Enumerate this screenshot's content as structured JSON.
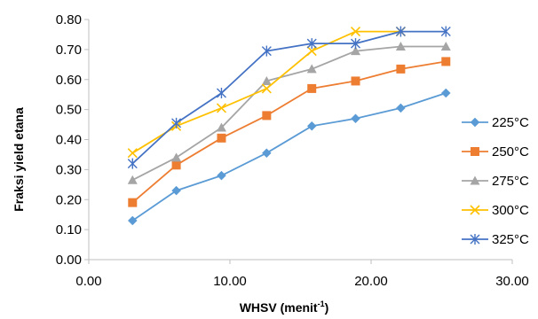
{
  "chart_data": {
    "type": "line",
    "title": "",
    "xlabel": "WHSV (menit",
    "xlabel_sup": "-1",
    "xlabel_tail": ")",
    "ylabel": "Fraksi  yield etana",
    "xlim": [
      0,
      30
    ],
    "ylim": [
      0,
      0.8
    ],
    "x_ticks": [
      "0.00",
      "10.00",
      "20.00",
      "30.00"
    ],
    "y_ticks": [
      "0.00",
      "0.10",
      "0.20",
      "0.30",
      "0.40",
      "0.50",
      "0.60",
      "0.70",
      "0.80"
    ],
    "grid": false,
    "legend_position": "right",
    "x": [
      3.1,
      6.2,
      9.4,
      12.6,
      15.8,
      18.9,
      22.1,
      25.3
    ],
    "series": [
      {
        "name": "225°C",
        "color": "#5b9bd5",
        "marker": "diamond",
        "values": [
          0.13,
          0.23,
          0.28,
          0.355,
          0.445,
          0.47,
          0.505,
          0.555
        ]
      },
      {
        "name": "250°C",
        "color": "#ed7d31",
        "marker": "square",
        "values": [
          0.19,
          0.315,
          0.405,
          0.48,
          0.57,
          0.595,
          0.635,
          0.66
        ]
      },
      {
        "name": "275°C",
        "color": "#a5a5a5",
        "marker": "triangle",
        "values": [
          0.265,
          0.34,
          0.44,
          0.595,
          0.635,
          0.695,
          0.71,
          0.71
        ]
      },
      {
        "name": "300°C",
        "color": "#ffc000",
        "marker": "x",
        "values": [
          0.355,
          0.445,
          0.505,
          0.57,
          0.695,
          0.76,
          0.76,
          null
        ]
      },
      {
        "name": "325°C",
        "color": "#4472c4",
        "marker": "star",
        "values": [
          0.32,
          0.455,
          0.555,
          0.695,
          0.72,
          0.72,
          0.76,
          0.76
        ]
      }
    ]
  }
}
